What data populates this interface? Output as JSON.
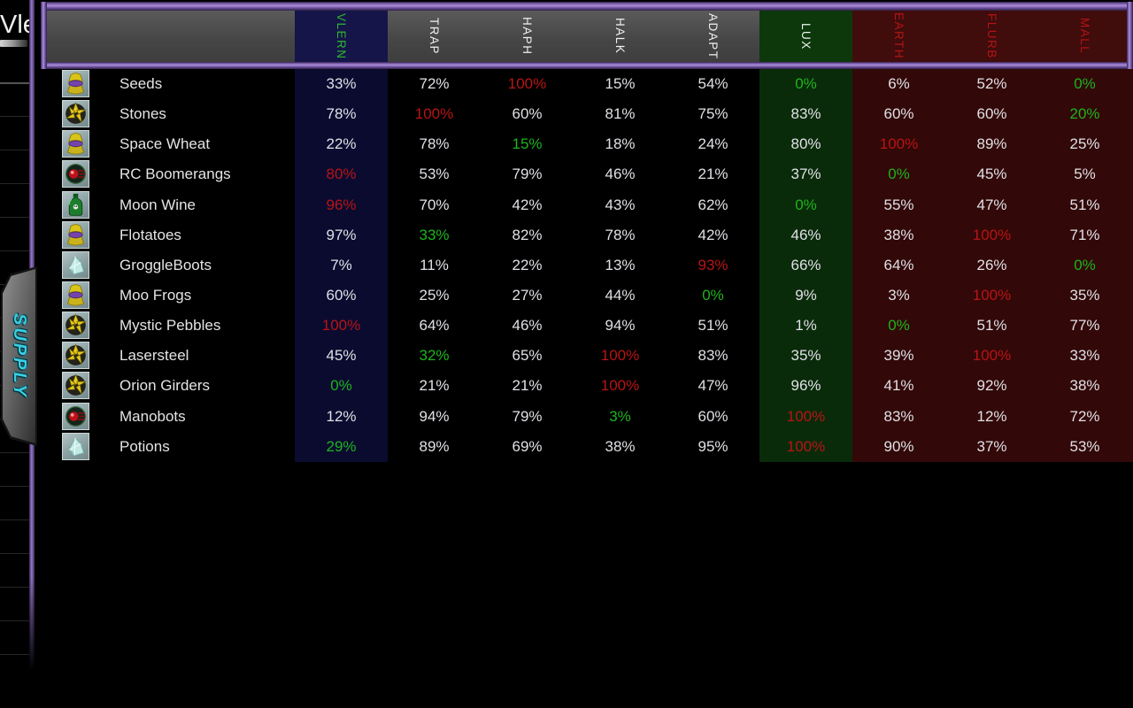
{
  "window": {
    "background_button_label": "Vle"
  },
  "supply_tab": {
    "label": "SUPPLY"
  },
  "colors": {
    "value_white": "#e0e0e6",
    "value_red": "#b81414",
    "value_green": "#1db41d",
    "accent_purple": "#9478c8",
    "header_gray": "#4a4a4a",
    "supply_cyan": "#38cfe4"
  },
  "table": {
    "columns": [
      {
        "label": "VLERN",
        "header_bg": "#15154a",
        "body_bg": "#0b0b30",
        "text": "#2cb82c"
      },
      {
        "label": "TRAP",
        "header_bg": "",
        "body_bg": "",
        "text": "#f0f0f0"
      },
      {
        "label": "HAPH",
        "header_bg": "",
        "body_bg": "",
        "text": "#f0f0f0"
      },
      {
        "label": "HALK",
        "header_bg": "",
        "body_bg": "",
        "text": "#f0f0f0"
      },
      {
        "label": "ADAPT",
        "header_bg": "",
        "body_bg": "",
        "text": "#f0f0f0"
      },
      {
        "label": "LUX",
        "header_bg": "#0c380c",
        "body_bg": "#0a2b0a",
        "text": "#edf3ed"
      },
      {
        "label": "EARTH",
        "header_bg": "#400c0c",
        "body_bg": "#320808",
        "text": "#b41414"
      },
      {
        "label": "FLURB",
        "header_bg": "#400c0c",
        "body_bg": "#320808",
        "text": "#b41414"
      },
      {
        "label": "MALL",
        "header_bg": "#400c0c",
        "body_bg": "#320808",
        "text": "#b41414"
      }
    ],
    "rows": [
      {
        "name": "Seeds",
        "icon": "seed-bundle-icon",
        "values": [
          [
            "33%",
            "w"
          ],
          [
            "72%",
            "w"
          ],
          [
            "100%",
            "r"
          ],
          [
            "15%",
            "w"
          ],
          [
            "54%",
            "w"
          ],
          [
            "0%",
            "g"
          ],
          [
            "6%",
            "w"
          ],
          [
            "52%",
            "w"
          ],
          [
            "0%",
            "g"
          ]
        ]
      },
      {
        "name": "Stones",
        "icon": "crystal-cluster-icon",
        "values": [
          [
            "78%",
            "w"
          ],
          [
            "100%",
            "r"
          ],
          [
            "60%",
            "w"
          ],
          [
            "81%",
            "w"
          ],
          [
            "75%",
            "w"
          ],
          [
            "83%",
            "w"
          ],
          [
            "60%",
            "w"
          ],
          [
            "60%",
            "w"
          ],
          [
            "20%",
            "g"
          ]
        ]
      },
      {
        "name": "Space Wheat",
        "icon": "seed-bundle-icon",
        "values": [
          [
            "22%",
            "w"
          ],
          [
            "78%",
            "w"
          ],
          [
            "15%",
            "g"
          ],
          [
            "18%",
            "w"
          ],
          [
            "24%",
            "w"
          ],
          [
            "80%",
            "w"
          ],
          [
            "100%",
            "r"
          ],
          [
            "89%",
            "w"
          ],
          [
            "25%",
            "w"
          ]
        ]
      },
      {
        "name": "RC Boomerangs",
        "icon": "device-eye-icon",
        "values": [
          [
            "80%",
            "r"
          ],
          [
            "53%",
            "w"
          ],
          [
            "79%",
            "w"
          ],
          [
            "46%",
            "w"
          ],
          [
            "21%",
            "w"
          ],
          [
            "37%",
            "w"
          ],
          [
            "0%",
            "g"
          ],
          [
            "45%",
            "w"
          ],
          [
            "5%",
            "w"
          ]
        ]
      },
      {
        "name": "Moon Wine",
        "icon": "bottle-icon",
        "values": [
          [
            "96%",
            "r"
          ],
          [
            "70%",
            "w"
          ],
          [
            "42%",
            "w"
          ],
          [
            "43%",
            "w"
          ],
          [
            "62%",
            "w"
          ],
          [
            "0%",
            "g"
          ],
          [
            "55%",
            "w"
          ],
          [
            "47%",
            "w"
          ],
          [
            "51%",
            "w"
          ]
        ]
      },
      {
        "name": "Flotatoes",
        "icon": "seed-bundle-icon",
        "values": [
          [
            "97%",
            "w"
          ],
          [
            "33%",
            "g"
          ],
          [
            "82%",
            "w"
          ],
          [
            "78%",
            "w"
          ],
          [
            "42%",
            "w"
          ],
          [
            "46%",
            "w"
          ],
          [
            "38%",
            "w"
          ],
          [
            "100%",
            "r"
          ],
          [
            "71%",
            "w"
          ]
        ]
      },
      {
        "name": "GroggleBoots",
        "icon": "gem-icon",
        "values": [
          [
            "7%",
            "w"
          ],
          [
            "11%",
            "w"
          ],
          [
            "22%",
            "w"
          ],
          [
            "13%",
            "w"
          ],
          [
            "93%",
            "r"
          ],
          [
            "66%",
            "w"
          ],
          [
            "64%",
            "w"
          ],
          [
            "26%",
            "w"
          ],
          [
            "0%",
            "g"
          ]
        ]
      },
      {
        "name": "Moo Frogs",
        "icon": "seed-bundle-icon",
        "values": [
          [
            "60%",
            "w"
          ],
          [
            "25%",
            "w"
          ],
          [
            "27%",
            "w"
          ],
          [
            "44%",
            "w"
          ],
          [
            "0%",
            "g"
          ],
          [
            "9%",
            "w"
          ],
          [
            "3%",
            "w"
          ],
          [
            "100%",
            "r"
          ],
          [
            "35%",
            "w"
          ]
        ]
      },
      {
        "name": "Mystic Pebbles",
        "icon": "crystal-cluster-icon",
        "values": [
          [
            "100%",
            "r"
          ],
          [
            "64%",
            "w"
          ],
          [
            "46%",
            "w"
          ],
          [
            "94%",
            "w"
          ],
          [
            "51%",
            "w"
          ],
          [
            "1%",
            "w"
          ],
          [
            "0%",
            "g"
          ],
          [
            "51%",
            "w"
          ],
          [
            "77%",
            "w"
          ]
        ]
      },
      {
        "name": "Lasersteel",
        "icon": "crystal-cluster-icon",
        "values": [
          [
            "45%",
            "w"
          ],
          [
            "32%",
            "g"
          ],
          [
            "65%",
            "w"
          ],
          [
            "100%",
            "r"
          ],
          [
            "83%",
            "w"
          ],
          [
            "35%",
            "w"
          ],
          [
            "39%",
            "w"
          ],
          [
            "100%",
            "r"
          ],
          [
            "33%",
            "w"
          ]
        ]
      },
      {
        "name": "Orion Girders",
        "icon": "crystal-cluster-icon",
        "values": [
          [
            "0%",
            "g"
          ],
          [
            "21%",
            "w"
          ],
          [
            "21%",
            "w"
          ],
          [
            "100%",
            "r"
          ],
          [
            "47%",
            "w"
          ],
          [
            "96%",
            "w"
          ],
          [
            "41%",
            "w"
          ],
          [
            "92%",
            "w"
          ],
          [
            "38%",
            "w"
          ]
        ]
      },
      {
        "name": "Manobots",
        "icon": "device-eye-icon",
        "values": [
          [
            "12%",
            "w"
          ],
          [
            "94%",
            "w"
          ],
          [
            "79%",
            "w"
          ],
          [
            "3%",
            "g"
          ],
          [
            "60%",
            "w"
          ],
          [
            "100%",
            "r"
          ],
          [
            "83%",
            "w"
          ],
          [
            "12%",
            "w"
          ],
          [
            "72%",
            "w"
          ]
        ]
      },
      {
        "name": "Potions",
        "icon": "gem-icon",
        "values": [
          [
            "29%",
            "g"
          ],
          [
            "89%",
            "w"
          ],
          [
            "69%",
            "w"
          ],
          [
            "38%",
            "w"
          ],
          [
            "95%",
            "w"
          ],
          [
            "100%",
            "r"
          ],
          [
            "90%",
            "w"
          ],
          [
            "37%",
            "w"
          ],
          [
            "53%",
            "w"
          ]
        ]
      }
    ]
  }
}
